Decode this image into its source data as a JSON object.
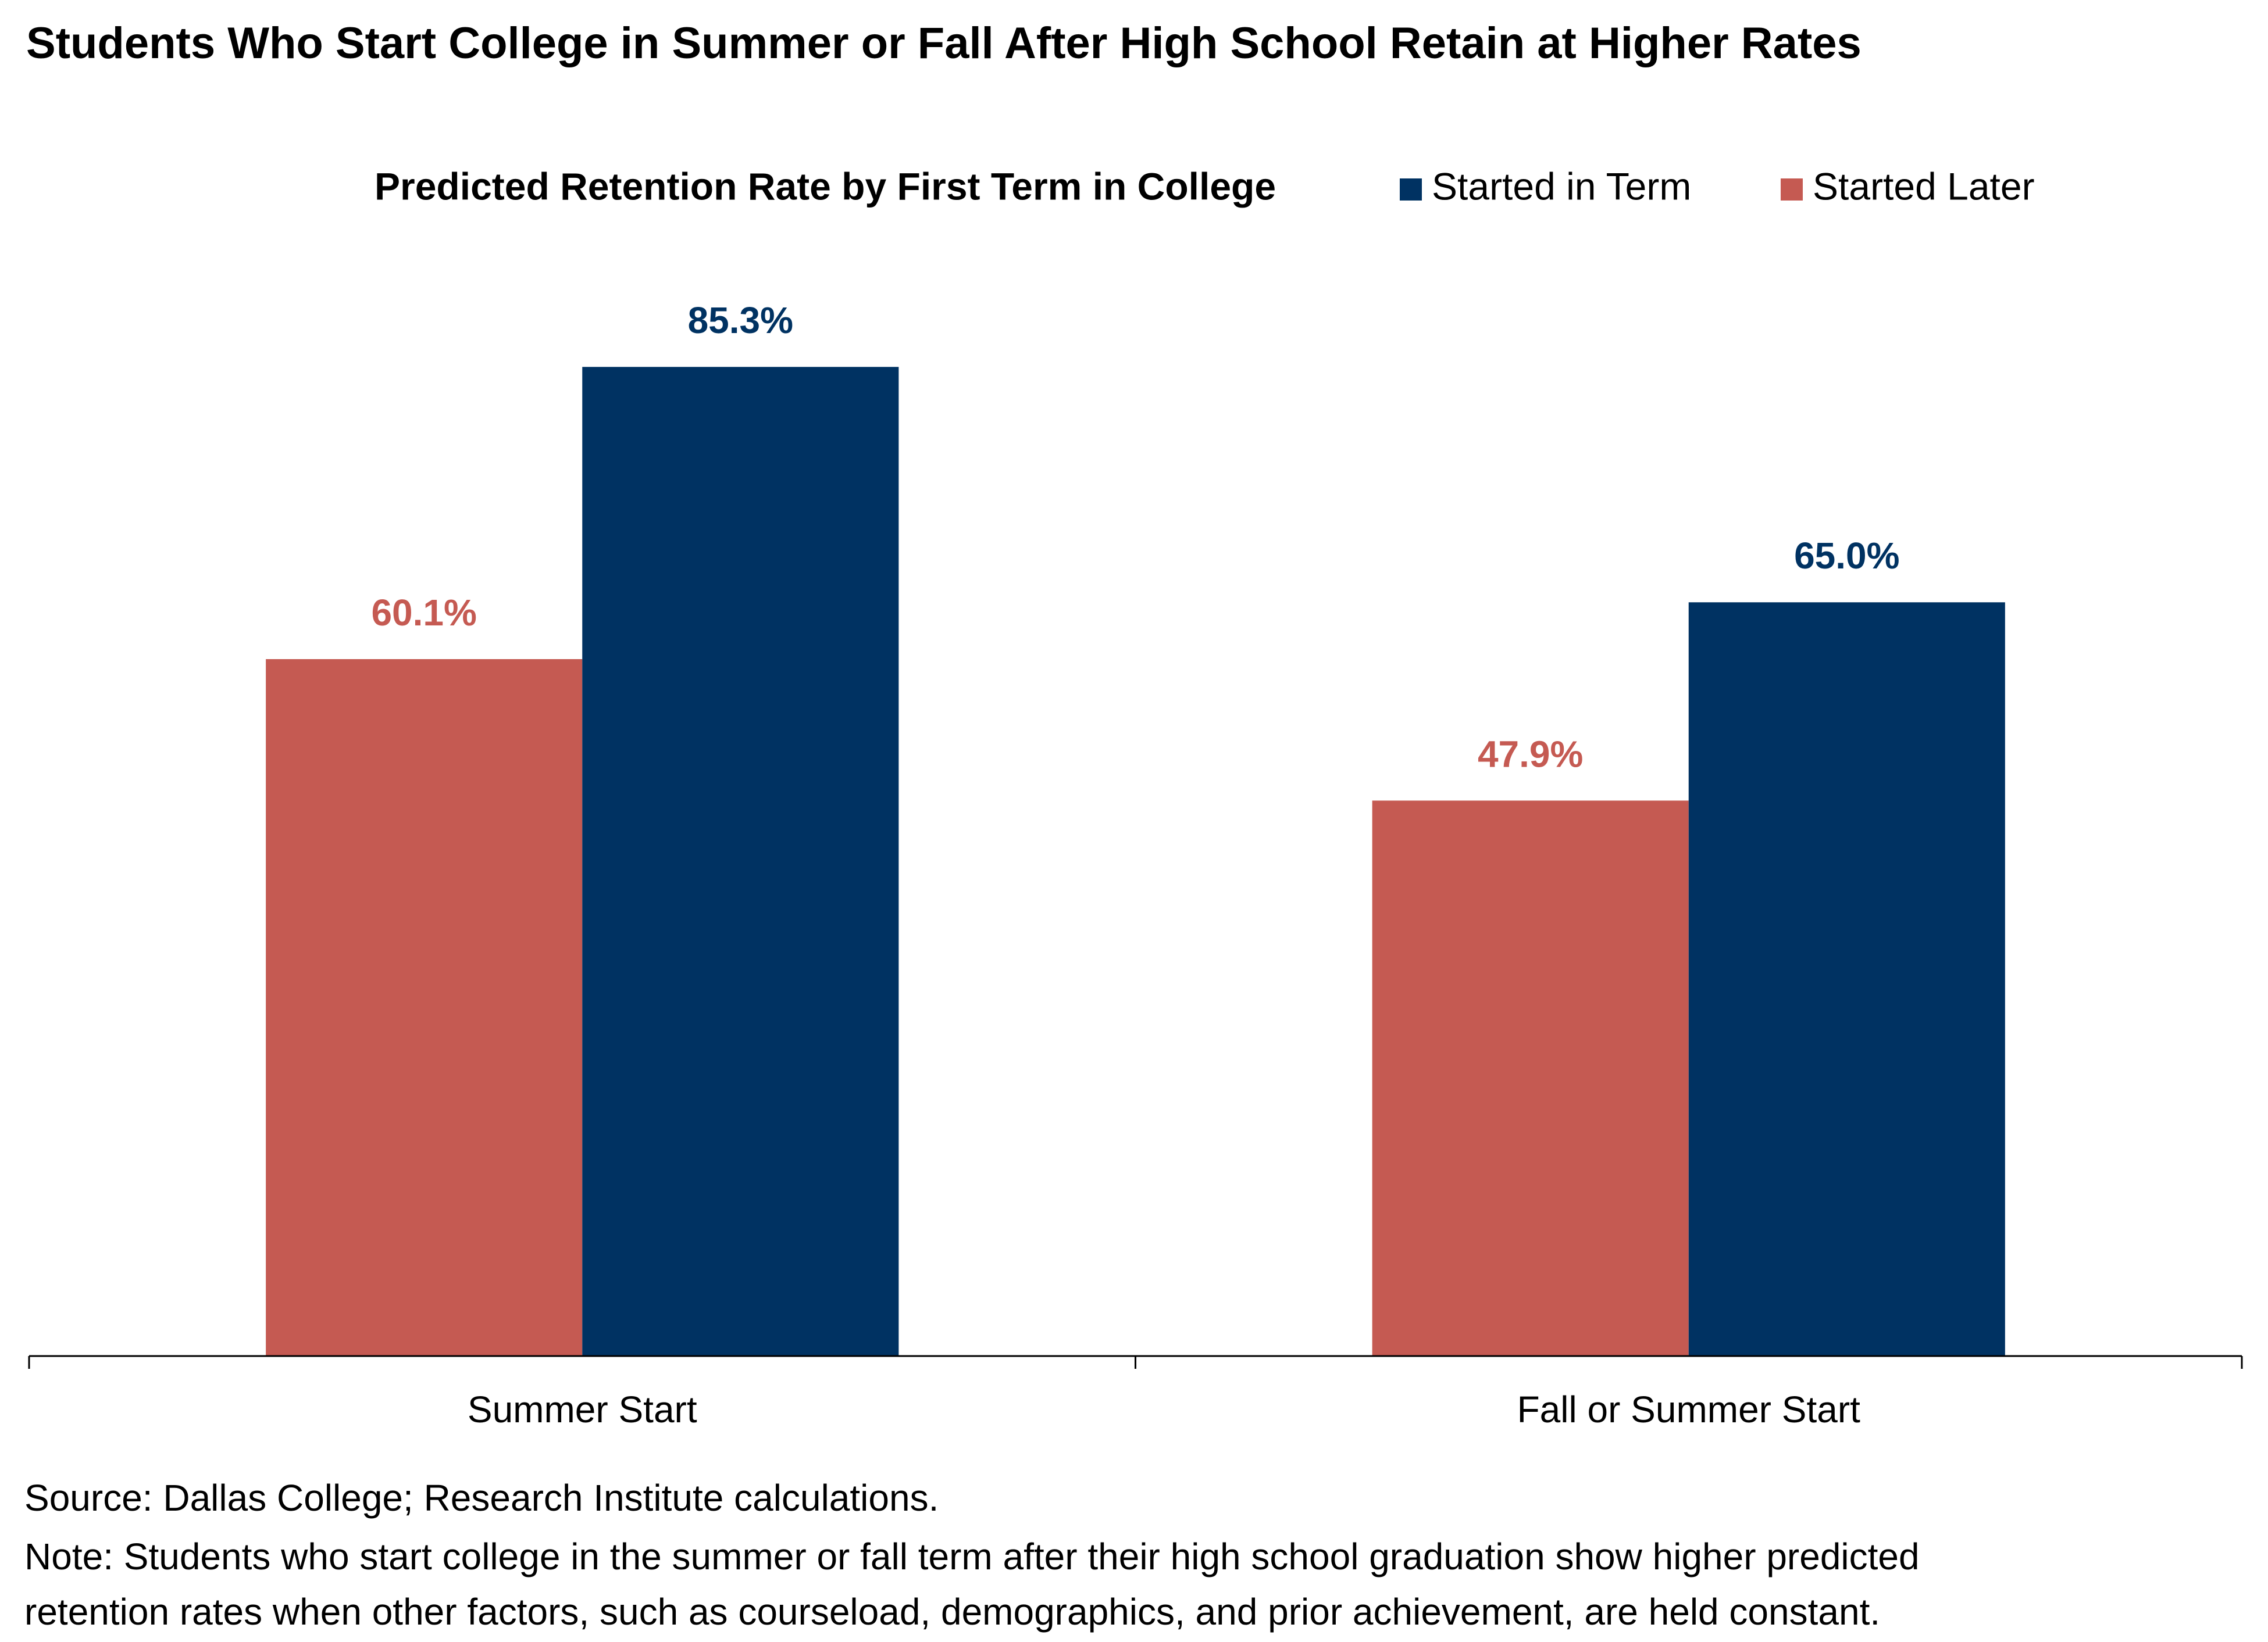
{
  "chart_data": {
    "type": "bar",
    "title": "Students Who Start College in Summer or Fall After High School Retain at Higher Rates",
    "subtitle": "Predicted Retention Rate by First Term in College",
    "categories": [
      "Summer Start",
      "Fall or Summer Start"
    ],
    "series": [
      {
        "name": "Started in Term",
        "color": "#003262",
        "values": [
          85.3,
          65.0
        ],
        "value_labels": [
          "85.3%",
          "65.0%"
        ]
      },
      {
        "name": "Started Later",
        "color": "#c55a52",
        "values": [
          60.1,
          47.9
        ],
        "value_labels": [
          "60.1%",
          "47.9%"
        ]
      }
    ],
    "ylim": [
      0,
      100
    ],
    "grid": false,
    "legend": "top",
    "source": "Source: Dallas College; Research Institute calculations.",
    "note": [
      "Note: Students who start college in the summer or fall term after their high school graduation show higher predicted",
      "retention rates when other factors, such as courseload, demographics, and prior achievement, are held constant."
    ]
  }
}
